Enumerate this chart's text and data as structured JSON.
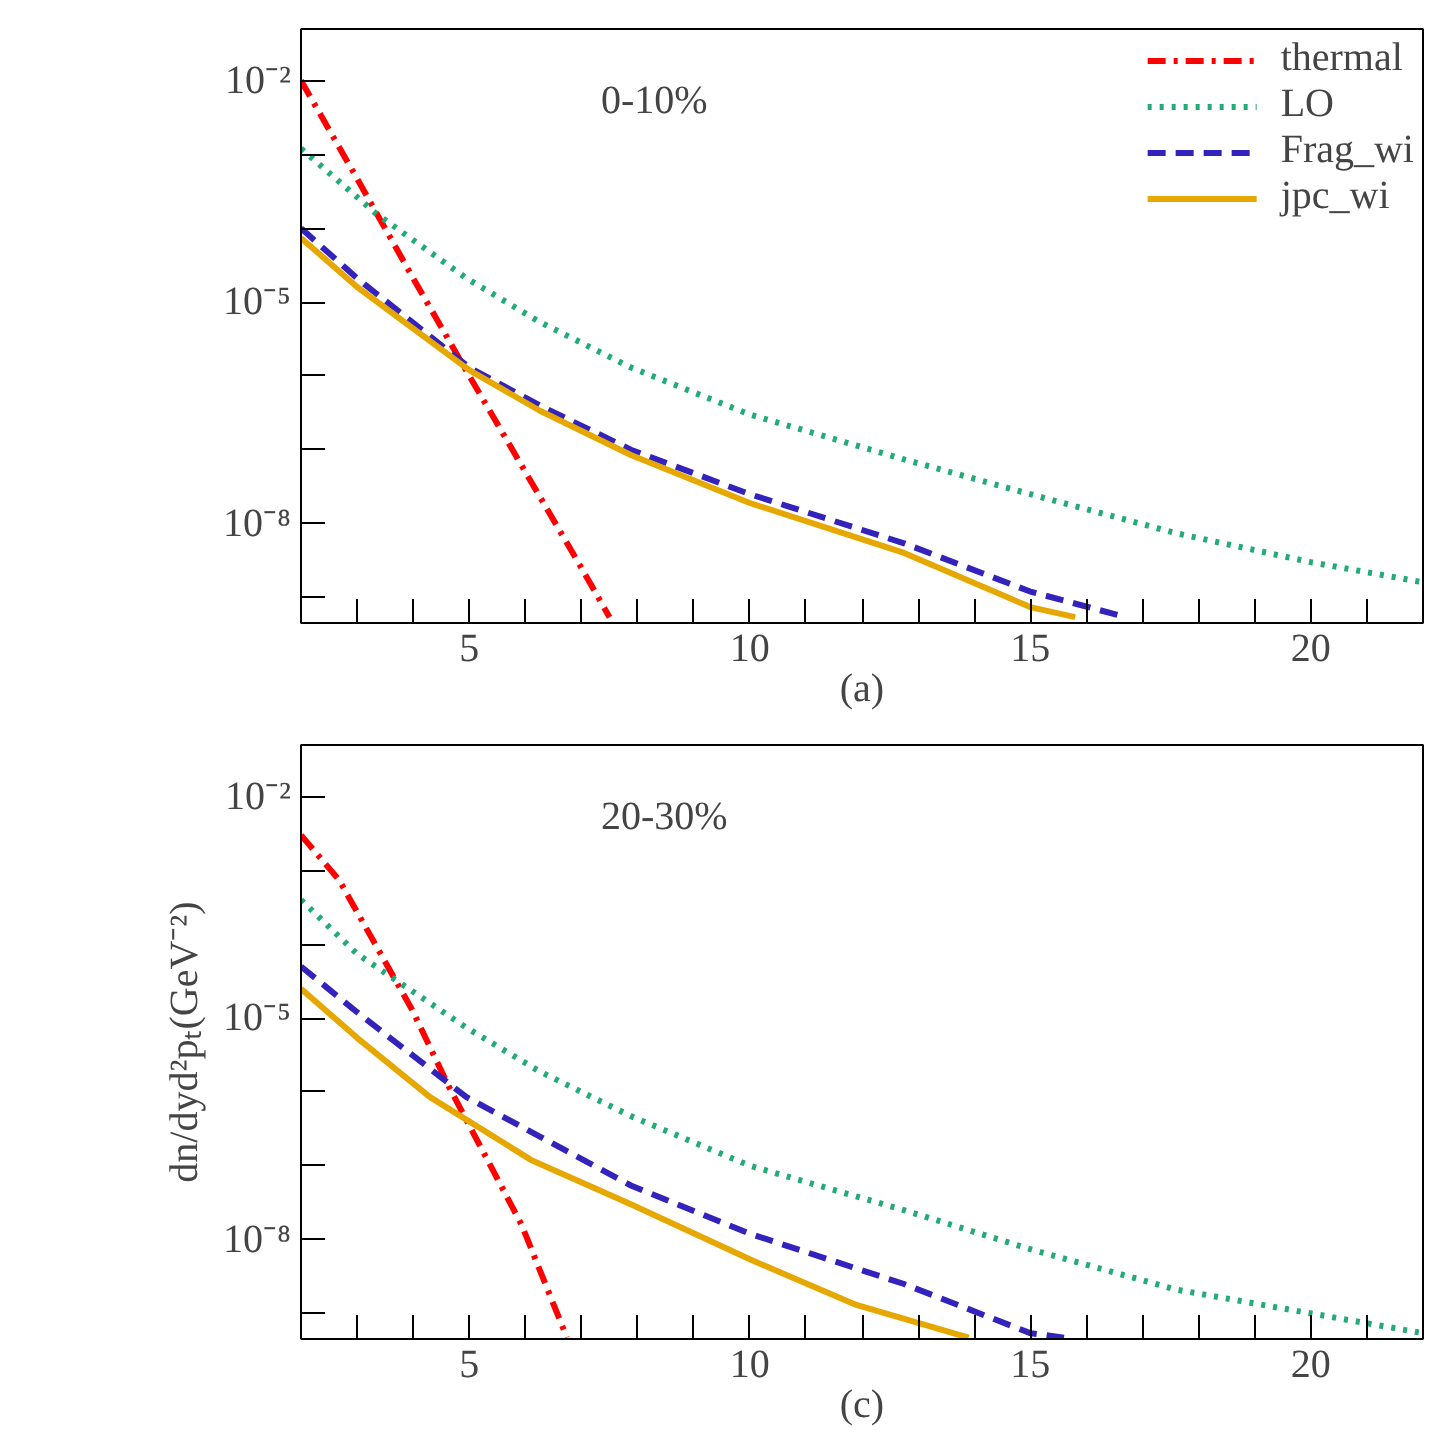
{
  "chart_data": [
    {
      "type": "line",
      "xlabel": "(a)",
      "annotations": [
        "0-10%"
      ],
      "legend": "top right",
      "log": "y",
      "xlim": [
        2,
        22
      ],
      "xticks": [
        {
          "value": 3,
          "label": null
        },
        {
          "value": 4,
          "label": null
        },
        5,
        {
          "value": 6,
          "label": null
        },
        {
          "value": 7,
          "label": null
        },
        {
          "value": 8,
          "label": null
        },
        {
          "value": 9,
          "label": null
        },
        10,
        {
          "value": 11,
          "label": null
        },
        {
          "value": 12,
          "label": null
        },
        {
          "value": 13,
          "label": null
        },
        {
          "value": 14,
          "label": null
        },
        15,
        {
          "value": 16,
          "label": null
        },
        {
          "value": 17,
          "label": null
        },
        {
          "value": 18,
          "label": null
        },
        {
          "value": 19,
          "label": null
        },
        20,
        {
          "value": 21,
          "label": null
        }
      ],
      "ylim": [
        4.5e-10,
        0.05
      ],
      "yticks": [
        {
          "value": 0.01,
          "label": "10⁻²"
        },
        {
          "value": 0.001,
          "label": null
        },
        {
          "value": 0.0001,
          "label": null
        },
        {
          "value": 1e-05,
          "label": "10⁻⁵"
        },
        {
          "value": 1e-06,
          "label": null
        },
        {
          "value": 1e-07,
          "label": null
        },
        {
          "value": 1e-08,
          "label": "10⁻⁸"
        },
        {
          "value": 1e-09,
          "label": null
        }
      ],
      "series": [
        {
          "name": "thermal",
          "color": "#ff0000",
          "line_style": "dashdot",
          "x": [
            2,
            3,
            4,
            5,
            6,
            7,
            7.5
          ],
          "values": [
            0.01,
            0.00047,
            2.1e-05,
            1e-06,
            5e-08,
            2.5e-09,
            5.4e-10
          ]
        },
        {
          "name": "LO",
          "color": "#22aa77",
          "line_style": "dotted",
          "x": [
            2,
            3.33,
            4.95,
            6.25,
            7.88,
            10,
            12.75,
            15,
            17.6,
            20,
            22
          ],
          "values": [
            0.0012,
            0.00016,
            2.1e-05,
            5.4e-06,
            1.3e-06,
            3e-07,
            7.4e-08,
            2.5e-08,
            7.4e-09,
            3e-09,
            1.6e-09
          ]
        },
        {
          "name": "Frag_wi",
          "color": "#3322bb",
          "line_style": "dashed",
          "x": [
            2,
            3,
            5,
            6.25,
            7.88,
            10,
            12.75,
            15,
            16.7
          ],
          "values": [
            0.0001,
            2.1e-05,
            1.3e-06,
            4e-07,
            1e-07,
            2.5e-08,
            5.4e-09,
            1.2e-09,
            5.4e-10
          ]
        },
        {
          "name": "jpc_wi",
          "color": "#e6a800",
          "line_style": "solid",
          "x": [
            2,
            3,
            5,
            6.25,
            7.88,
            10,
            12.75,
            15,
            15.8
          ],
          "values": [
            7.4e-05,
            1.6e-05,
            1.2e-06,
            3.4e-07,
            8.5e-08,
            1.9e-08,
            4e-09,
            7.4e-10,
            5.4e-10
          ]
        }
      ]
    },
    {
      "type": "line",
      "xlabel": "(c)",
      "ylabel": "dn/dyd²pₜ(GeV⁻²)",
      "annotations": [
        "20-30%"
      ],
      "log": "y",
      "xlim": [
        2,
        22
      ],
      "xticks": [
        {
          "value": 3,
          "label": null
        },
        {
          "value": 4,
          "label": null
        },
        5,
        {
          "value": 6,
          "label": null
        },
        {
          "value": 7,
          "label": null
        },
        {
          "value": 8,
          "label": null
        },
        {
          "value": 9,
          "label": null
        },
        10,
        {
          "value": 11,
          "label": null
        },
        {
          "value": 12,
          "label": null
        },
        {
          "value": 13,
          "label": null
        },
        {
          "value": 14,
          "label": null
        },
        15,
        {
          "value": 16,
          "label": null
        },
        {
          "value": 17,
          "label": null
        },
        {
          "value": 18,
          "label": null
        },
        {
          "value": 19,
          "label": null
        },
        20,
        {
          "value": 21,
          "label": null
        }
      ],
      "ylim": [
        4.5e-10,
        0.05
      ],
      "yticks": [
        {
          "value": 0.01,
          "label": "10⁻²"
        },
        {
          "value": 0.001,
          "label": null
        },
        {
          "value": 0.0001,
          "label": null
        },
        {
          "value": 1e-05,
          "label": "10⁻⁵"
        },
        {
          "value": 1e-06,
          "label": null
        },
        {
          "value": 1e-07,
          "label": null
        },
        {
          "value": 1e-08,
          "label": "10⁻⁸"
        },
        {
          "value": 1e-09,
          "label": null
        }
      ],
      "series": [
        {
          "color": "#ff0000",
          "line_style": "dashdot",
          "x": [
            2,
            2.68,
            3.98,
            4.63,
            5.93,
            6.74
          ],
          "values": [
            0.003,
            0.00074,
            1.3e-05,
            1.2e-06,
            1.6e-08,
            4.7e-10
          ]
        },
        {
          "color": "#22aa77",
          "line_style": "dotted",
          "x": [
            2,
            3,
            4.95,
            6.25,
            7.88,
            10,
            12.75,
            15,
            17.6,
            20,
            22
          ],
          "values": [
            0.0004,
            7.4e-05,
            7.4e-06,
            1.9e-06,
            4.7e-07,
            1e-07,
            2.5e-08,
            7.4e-09,
            2.1e-09,
            1e-09,
            5.4e-10
          ]
        },
        {
          "color": "#3322bb",
          "line_style": "dashed",
          "x": [
            2,
            3,
            4.95,
            6.25,
            7.88,
            10,
            12.75,
            15,
            15.6
          ],
          "values": [
            5e-05,
            1.2e-05,
            8.5e-07,
            2.5e-07,
            5.4e-08,
            1.2e-08,
            2.5e-09,
            5.4e-10,
            4.7e-10
          ]
        },
        {
          "color": "#e6a800",
          "line_style": "solid",
          "x": [
            2,
            3,
            4.3,
            6.1,
            7.88,
            10,
            11.9,
            13.9
          ],
          "values": [
            2.5e-05,
            5.4e-06,
            8.5e-07,
            1.2e-07,
            3e-08,
            5.4e-09,
            1.3e-09,
            4.7e-10
          ]
        }
      ]
    }
  ]
}
